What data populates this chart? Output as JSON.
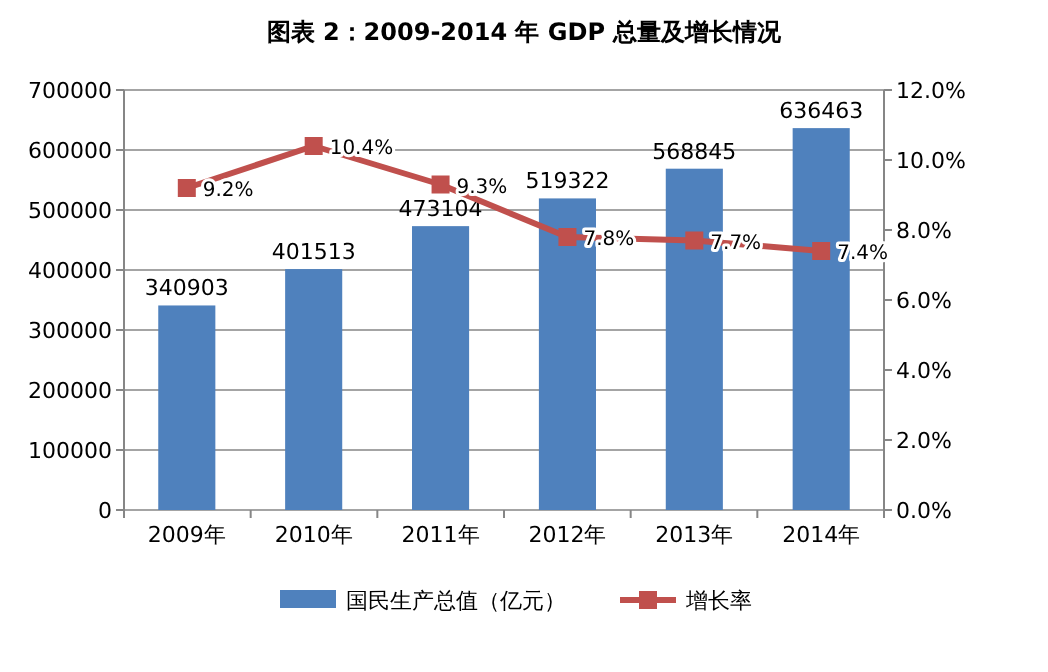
{
  "chart_data": {
    "type": "bar",
    "title": "图表 2：2009-2014 年 GDP 总量及增长情况",
    "categories": [
      "2009年",
      "2010年",
      "2011年",
      "2012年",
      "2013年",
      "2014年"
    ],
    "series": [
      {
        "name": "国民生产总值（亿元）",
        "color": "#4f81bd",
        "values": [
          340903,
          401513,
          473104,
          519322,
          568845,
          636463
        ],
        "value_labels": [
          "340903",
          "401513",
          "473104",
          "519322",
          "568845",
          "636463"
        ]
      },
      {
        "name": "增长率",
        "type": "line",
        "axis": "y2",
        "color": "#c0504d",
        "marker": "square",
        "values": [
          9.2,
          10.4,
          9.3,
          7.8,
          7.7,
          7.4
        ],
        "value_labels": [
          "9.2%",
          "10.4%",
          "9.3%",
          "7.8%",
          "7.7%",
          "7.4%"
        ]
      }
    ],
    "ylim": [
      0,
      700000
    ],
    "yticks": [
      0,
      100000,
      200000,
      300000,
      400000,
      500000,
      600000,
      700000
    ],
    "y2lim": [
      0,
      12
    ],
    "y2ticks": [
      {
        "value": 0,
        "label": "0.0%"
      },
      {
        "value": 2,
        "label": "2.0%"
      },
      {
        "value": 4,
        "label": "4.0%"
      },
      {
        "value": 6,
        "label": "6.0%"
      },
      {
        "value": 8,
        "label": "8.0%"
      },
      {
        "value": 10,
        "label": "10.0%"
      },
      {
        "value": 12,
        "label": "12.0%"
      }
    ],
    "grid": "y",
    "legend": "bottom"
  }
}
